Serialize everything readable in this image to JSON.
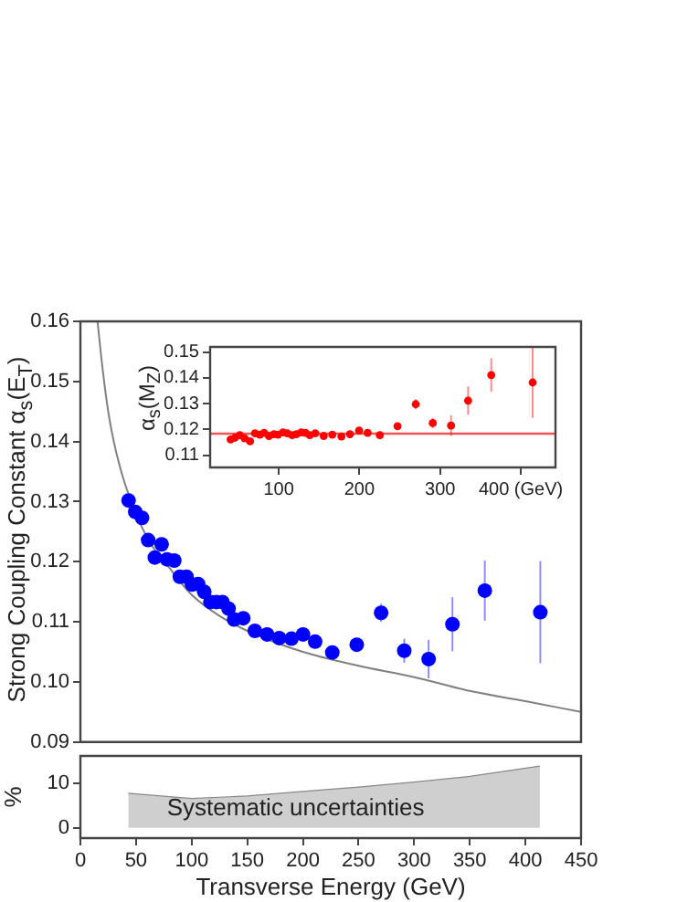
{
  "chart_data": [
    {
      "type": "scatter",
      "ylabel": "Strong Coupling Constant α$_{s}$(E$_{T}$)",
      "xlim": [
        0,
        450
      ],
      "ylim": [
        0.09,
        0.16
      ],
      "yticks": [
        0.09,
        {
          "value": 0.1,
          "label": "0.10"
        },
        0.11,
        0.12,
        0.13,
        0.14,
        0.15,
        0.16
      ],
      "tick_labels": "y",
      "grid": false,
      "marker": "circle",
      "series": [
        {
          "color": "#0000ff",
          "x": [
            43.3,
            49.3,
            55.4,
            60.9,
            66.9,
            73,
            77.9,
            84.4,
            89.4,
            95.4,
            100.3,
            105.8,
            111.3,
            116.8,
            122.3,
            127.7,
            133.2,
            138.2,
            146.4,
            156.8,
            167.8,
            178.7,
            189.7,
            200.1,
            211,
            226.4,
            248.4,
            270.3,
            291.1,
            313,
            334.4,
            363.5,
            413.4
          ],
          "values": [
            0.1302,
            0.1283,
            0.1273,
            0.1236,
            0.1207,
            0.1229,
            0.1204,
            0.1202,
            0.1175,
            0.1175,
            0.1162,
            0.1163,
            0.115,
            0.1133,
            0.1133,
            0.1133,
            0.1122,
            0.1104,
            0.1106,
            0.1085,
            0.1079,
            0.1073,
            0.1072,
            0.1079,
            0.1067,
            0.1049,
            0.1062,
            0.1115,
            0.1052,
            0.1038,
            0.1096,
            0.1152,
            0.1116
          ],
          "errors": [
            null,
            null,
            null,
            null,
            null,
            null,
            null,
            null,
            null,
            null,
            null,
            null,
            null,
            null,
            null,
            null,
            null,
            null,
            null,
            null,
            null,
            null,
            null,
            null,
            null,
            null,
            0.001,
            0.0015,
            0.002,
            0.0032,
            0.0045,
            0.005,
            0.0085
          ]
        },
        {
          "type": "line",
          "color": "#808080",
          "marker": "none",
          "x": [
            15.4,
            20,
            25,
            30,
            40,
            60,
            80,
            100,
            125,
            150,
            200,
            250,
            300,
            350,
            400,
            450
          ],
          "values": [
            0.16,
            0.152,
            0.145,
            0.14,
            0.133,
            0.124,
            0.119,
            0.1145,
            0.111,
            0.1085,
            0.105,
            0.1027,
            0.1008,
            0.0985,
            0.0968,
            0.095
          ]
        }
      ]
    },
    {
      "type": "scatter",
      "ylabel": "α$_{s}$(M$_{Z}$)",
      "xlim": [
        15,
        443
      ],
      "ylim": [
        0.1053,
        0.152
      ],
      "xticks": [
        100,
        200,
        300,
        {
          "value": 400,
          "label": "400 (GeV)"
        }
      ],
      "yticks": [
        0.11,
        0.12,
        0.13,
        0.14,
        0.15
      ],
      "grid": false,
      "marker": "circle",
      "ref_lines": [
        {
          "axis": "y",
          "value": 0.1184,
          "color": "#ee5555"
        }
      ],
      "series": [
        {
          "color": "#ff0000",
          "x": [
            40.4,
            45.7,
            51.7,
            57.7,
            64.5,
            70.6,
            76.6,
            81.9,
            87.9,
            94,
            99.2,
            105.3,
            110.6,
            116.6,
            121.9,
            127.9,
            133.2,
            138.5,
            145.3,
            155.8,
            166.4,
            177.7,
            188.3,
            199.6,
            210.2,
            225.3,
            247.2,
            269.8,
            290.9,
            313.6,
            334.7,
            363.4,
            414.7
          ],
          "values": [
            0.1161,
            0.1168,
            0.1178,
            0.1166,
            0.1154,
            0.1185,
            0.118,
            0.1187,
            0.1175,
            0.1182,
            0.118,
            0.1189,
            0.1185,
            0.1178,
            0.1182,
            0.1189,
            0.1187,
            0.1178,
            0.1185,
            0.1175,
            0.118,
            0.1173,
            0.1182,
            0.1196,
            0.1187,
            0.1178,
            0.1213,
            0.1298,
            0.1225,
            0.1215,
            0.1312,
            0.1411,
            0.1382
          ],
          "errors": [
            null,
            null,
            null,
            null,
            null,
            null,
            null,
            null,
            null,
            null,
            null,
            null,
            null,
            null,
            null,
            null,
            null,
            null,
            null,
            null,
            null,
            null,
            null,
            null,
            null,
            null,
            0.001,
            0.002,
            0.002,
            0.004,
            0.0055,
            0.0065,
            [
              0.1245,
              0.152
            ]
          ]
        }
      ]
    },
    {
      "type": "area",
      "xlabel": "Transverse Energy (GeV)",
      "ylabel": "%",
      "xlim": [
        0,
        450
      ],
      "ylim": [
        -2.3,
        16.2
      ],
      "xticks": [
        0,
        50,
        100,
        150,
        200,
        250,
        300,
        350,
        400,
        450
      ],
      "yticks": [
        0,
        10
      ],
      "grid": false,
      "annotations": [
        "Systematic uncertainties"
      ],
      "series": [
        {
          "color": "#888888",
          "x": [
            43,
            100,
            150,
            200,
            250,
            300,
            350,
            413
          ],
          "values": [
            7.8,
            6.6,
            7.2,
            8.2,
            9.2,
            10.3,
            11.6,
            13.9
          ]
        }
      ]
    }
  ]
}
